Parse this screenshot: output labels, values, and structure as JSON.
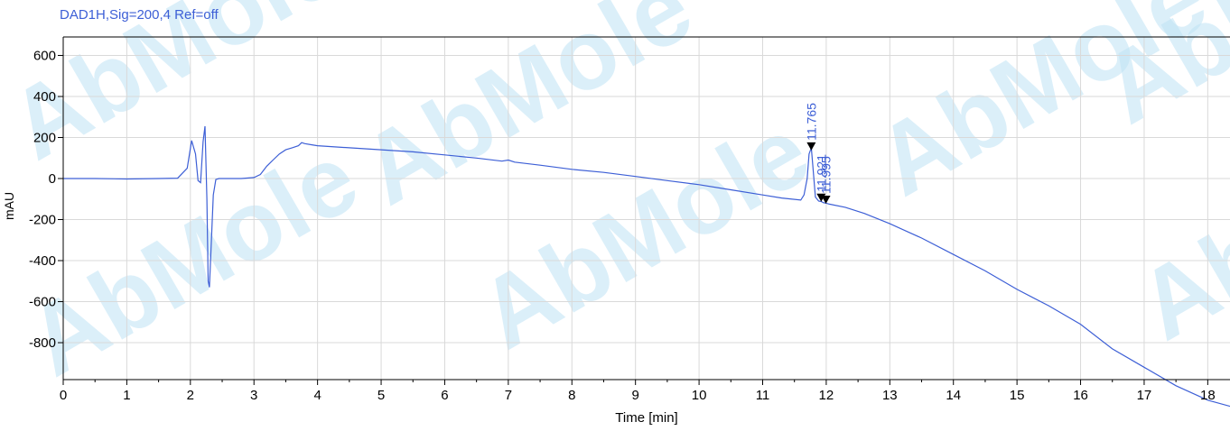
{
  "signal_title": "DAD1H,Sig=200,4  Ref=off",
  "watermark": {
    "text": "AbMole",
    "color": "#bfe3f5",
    "accent": "#fde7a6"
  },
  "colors": {
    "trace": "#3d5fd6",
    "grid": "#d9d9d9",
    "axis": "#000000"
  },
  "chart_data": {
    "type": "line",
    "title": "",
    "xlabel": "Time [min]",
    "ylabel": "mAU",
    "xlim": [
      0,
      18.35
    ],
    "ylim": [
      -980,
      690
    ],
    "xticks": [
      0,
      1,
      2,
      3,
      4,
      5,
      6,
      7,
      8,
      9,
      10,
      11,
      12,
      13,
      14,
      15,
      16,
      17,
      18
    ],
    "yticks": [
      600,
      400,
      200,
      0,
      -200,
      -400,
      -600,
      -800
    ],
    "grid": true,
    "series": [
      {
        "x": [
          0,
          0.5,
          1,
          1.5,
          1.8,
          1.95,
          2.02,
          2.08,
          2.12,
          2.16,
          2.2,
          2.23,
          2.26,
          2.28,
          2.3,
          2.33,
          2.36,
          2.4,
          2.45,
          2.55,
          2.8,
          3.0,
          3.1,
          3.2,
          3.3,
          3.4,
          3.5,
          3.6,
          3.7,
          3.75,
          3.8,
          3.9,
          4.0,
          4.5,
          5.0,
          5.5,
          6.0,
          6.5,
          6.9,
          7.0,
          7.1,
          7.5,
          8.0,
          8.5,
          9.0,
          9.5,
          10.0,
          10.5,
          11.0,
          11.3,
          11.6,
          11.65,
          11.7,
          11.73,
          11.765,
          11.79,
          11.83,
          11.88,
          11.921,
          11.96,
          11.995,
          12.05,
          12.3,
          12.6,
          13.0,
          13.5,
          14.0,
          14.5,
          15.0,
          15.5,
          16.0,
          16.5,
          17.0,
          17.5,
          18.0,
          18.35
        ],
        "y": [
          0,
          0,
          -2,
          0,
          2,
          50,
          185,
          120,
          -10,
          -20,
          180,
          255,
          -100,
          -500,
          -530,
          -300,
          -80,
          -5,
          0,
          0,
          0,
          5,
          20,
          60,
          90,
          120,
          140,
          150,
          160,
          175,
          170,
          165,
          160,
          150,
          140,
          130,
          115,
          100,
          85,
          90,
          80,
          65,
          45,
          30,
          10,
          -10,
          -30,
          -55,
          -80,
          -95,
          -105,
          -80,
          0,
          120,
          150,
          60,
          -90,
          -110,
          -112,
          -118,
          -120,
          -125,
          -140,
          -170,
          -220,
          -290,
          -370,
          -450,
          -540,
          -620,
          -710,
          -830,
          -920,
          -1010,
          -1080,
          -1110
        ]
      }
    ],
    "peak_labels": [
      {
        "label": "11.765",
        "x": 11.765,
        "y": 150
      },
      {
        "label": "11.921",
        "x": 11.921,
        "y": -100
      },
      {
        "label": "11.995",
        "x": 11.995,
        "y": -110
      }
    ]
  }
}
